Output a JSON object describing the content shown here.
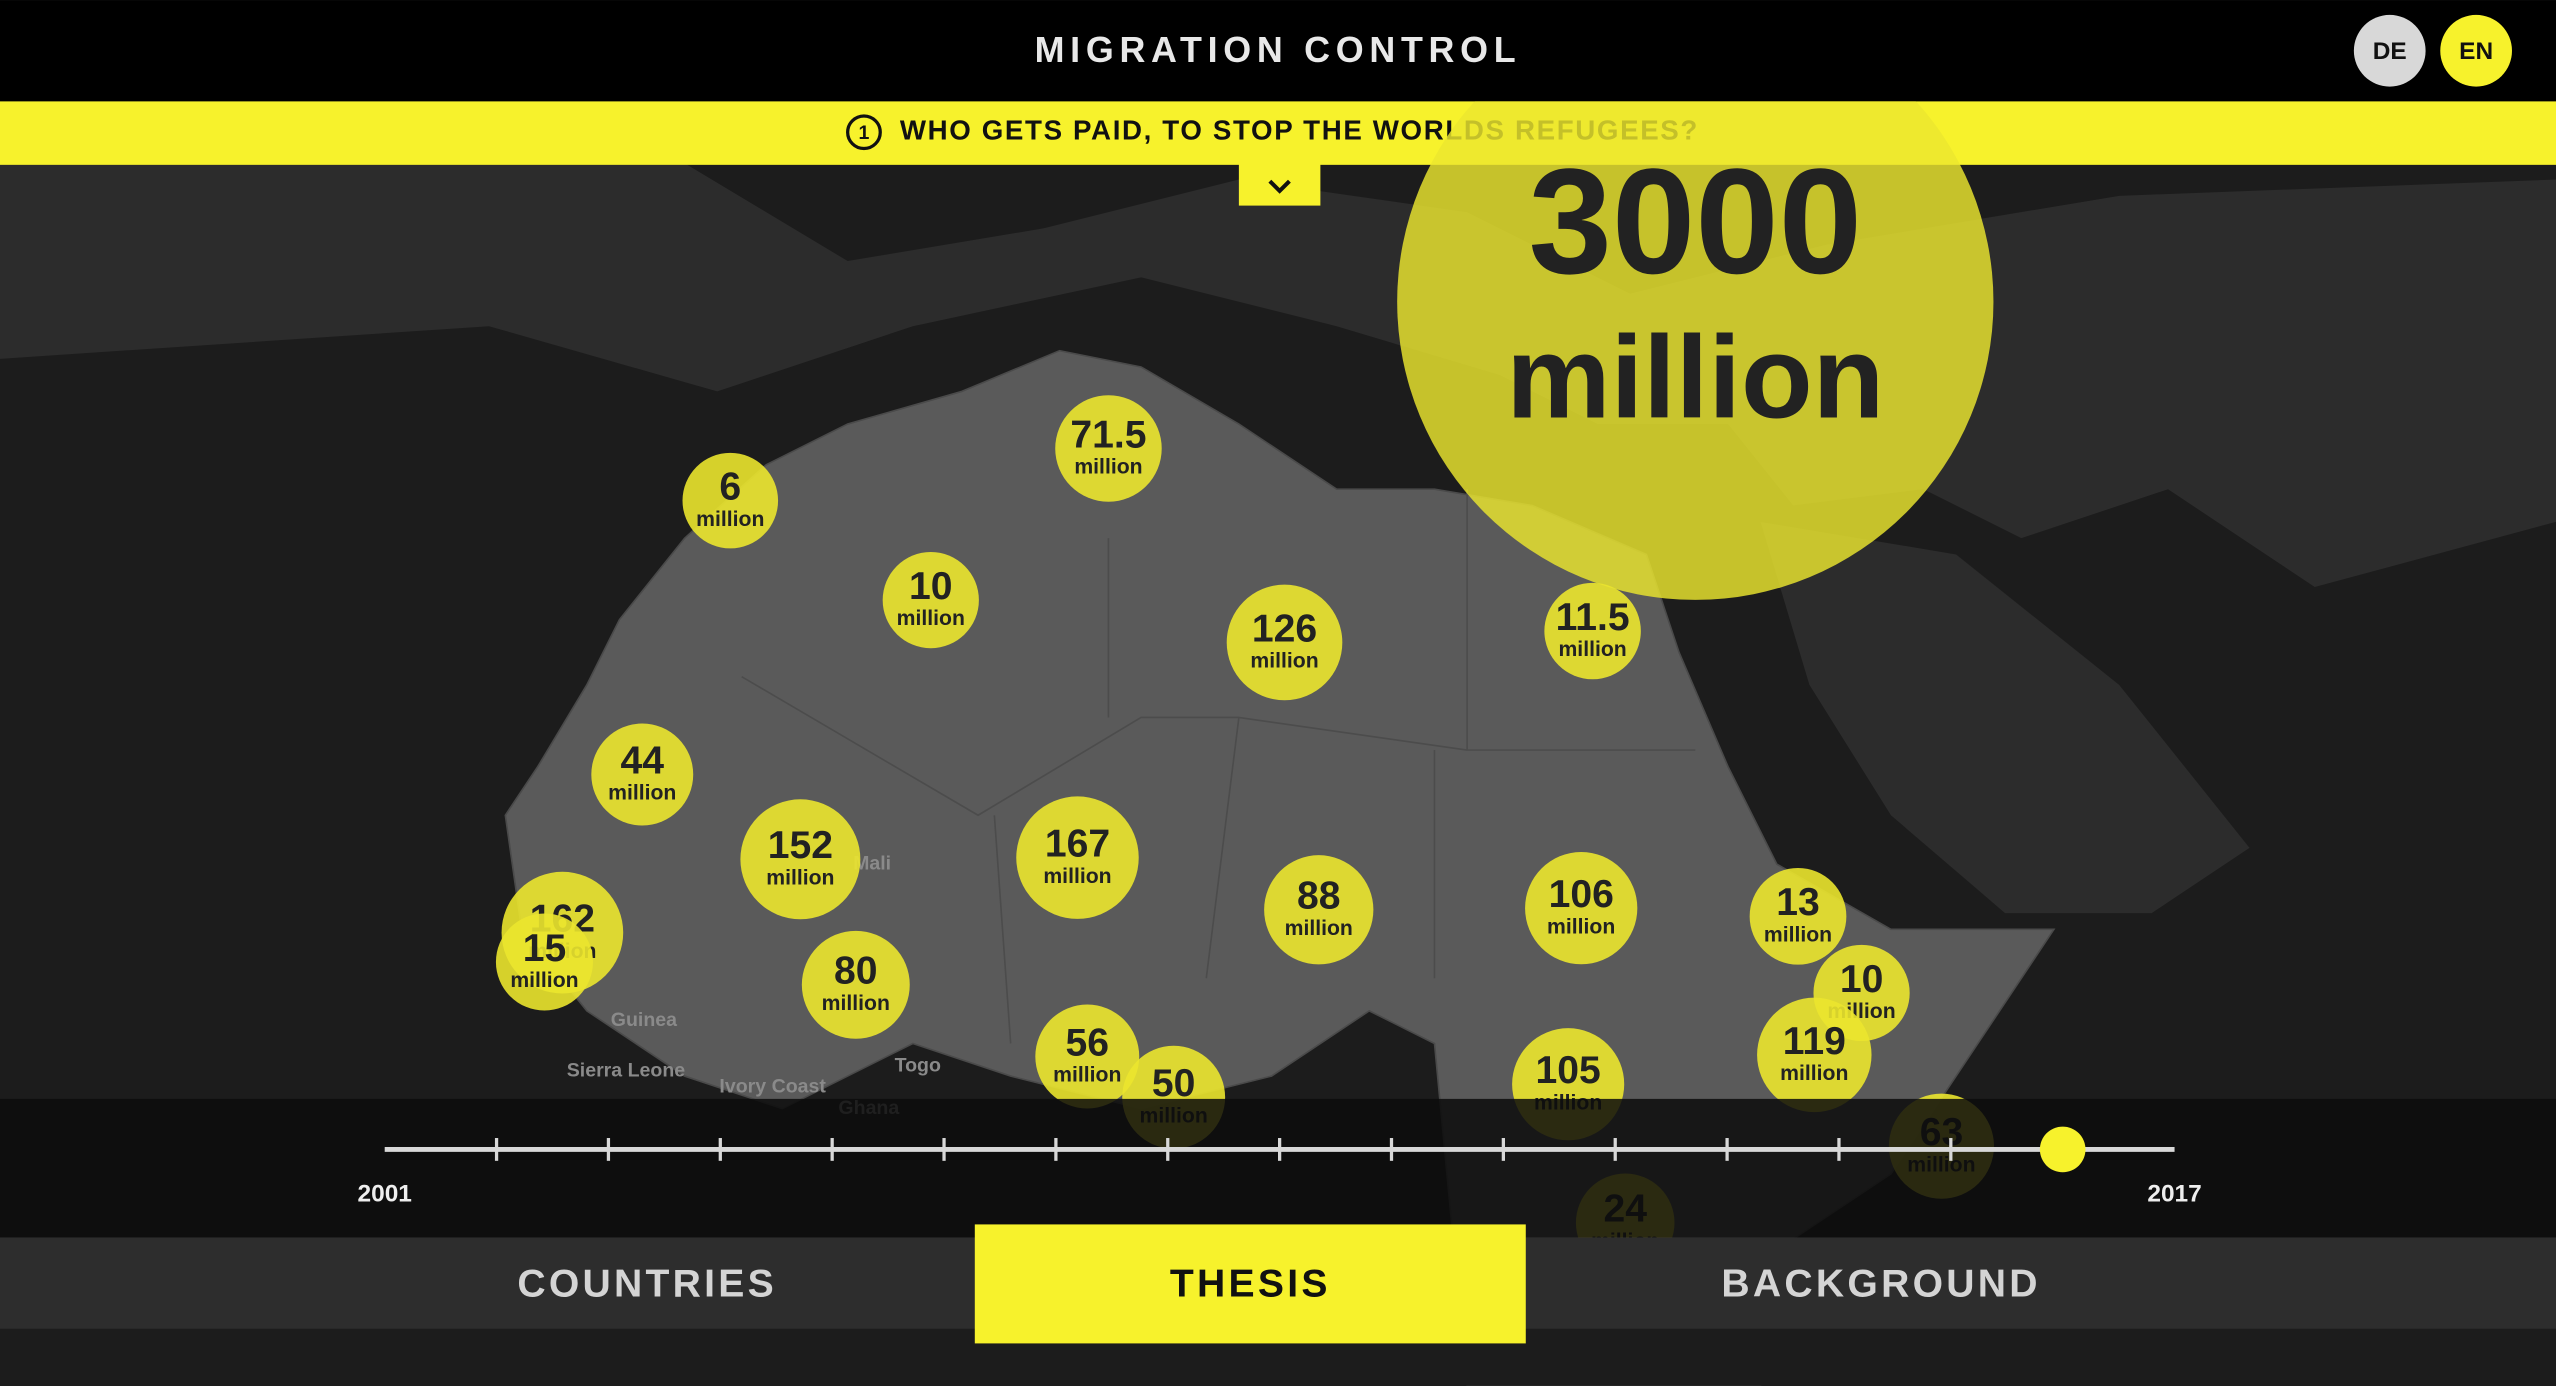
{
  "header": {
    "title": "MIGRATION CONTROL",
    "languages": [
      "DE",
      "EN"
    ]
  },
  "question": {
    "number": "1",
    "text": "WHO GETS PAID, TO STOP THE WORLDS REFUGEES?"
  },
  "map": {
    "labels": [
      "Mali",
      "Guinea",
      "Sierra Leone",
      "Ivory Coast",
      "Togo",
      "Ghana"
    ],
    "bubbles": [
      {
        "value": 3000,
        "unit": "million"
      },
      {
        "value": 71.5,
        "unit": "million"
      },
      {
        "value": 6,
        "unit": "million"
      },
      {
        "value": 10,
        "unit": "million"
      },
      {
        "value": 126,
        "unit": "million"
      },
      {
        "value": 11.5,
        "unit": "million"
      },
      {
        "value": 44,
        "unit": "million"
      },
      {
        "value": 152,
        "unit": "million"
      },
      {
        "value": 167,
        "unit": "million"
      },
      {
        "value": 88,
        "unit": "million"
      },
      {
        "value": 106,
        "unit": "million"
      },
      {
        "value": 13,
        "unit": "million"
      },
      {
        "value": 162,
        "unit": "million"
      },
      {
        "value": 15,
        "unit": "million"
      },
      {
        "value": 10,
        "unit": "million"
      },
      {
        "value": 80,
        "unit": "million"
      },
      {
        "value": 119,
        "unit": "million"
      },
      {
        "value": 56,
        "unit": "million"
      },
      {
        "value": 50,
        "unit": "million"
      },
      {
        "value": 105,
        "unit": "million"
      },
      {
        "value": 63,
        "unit": "million"
      },
      {
        "value": 24,
        "unit": "million"
      }
    ]
  },
  "timeline": {
    "start": 2001,
    "end": 2017,
    "value": 2016
  },
  "tabs": [
    "COUNTRIES",
    "THESIS",
    "BACKGROUND"
  ]
}
